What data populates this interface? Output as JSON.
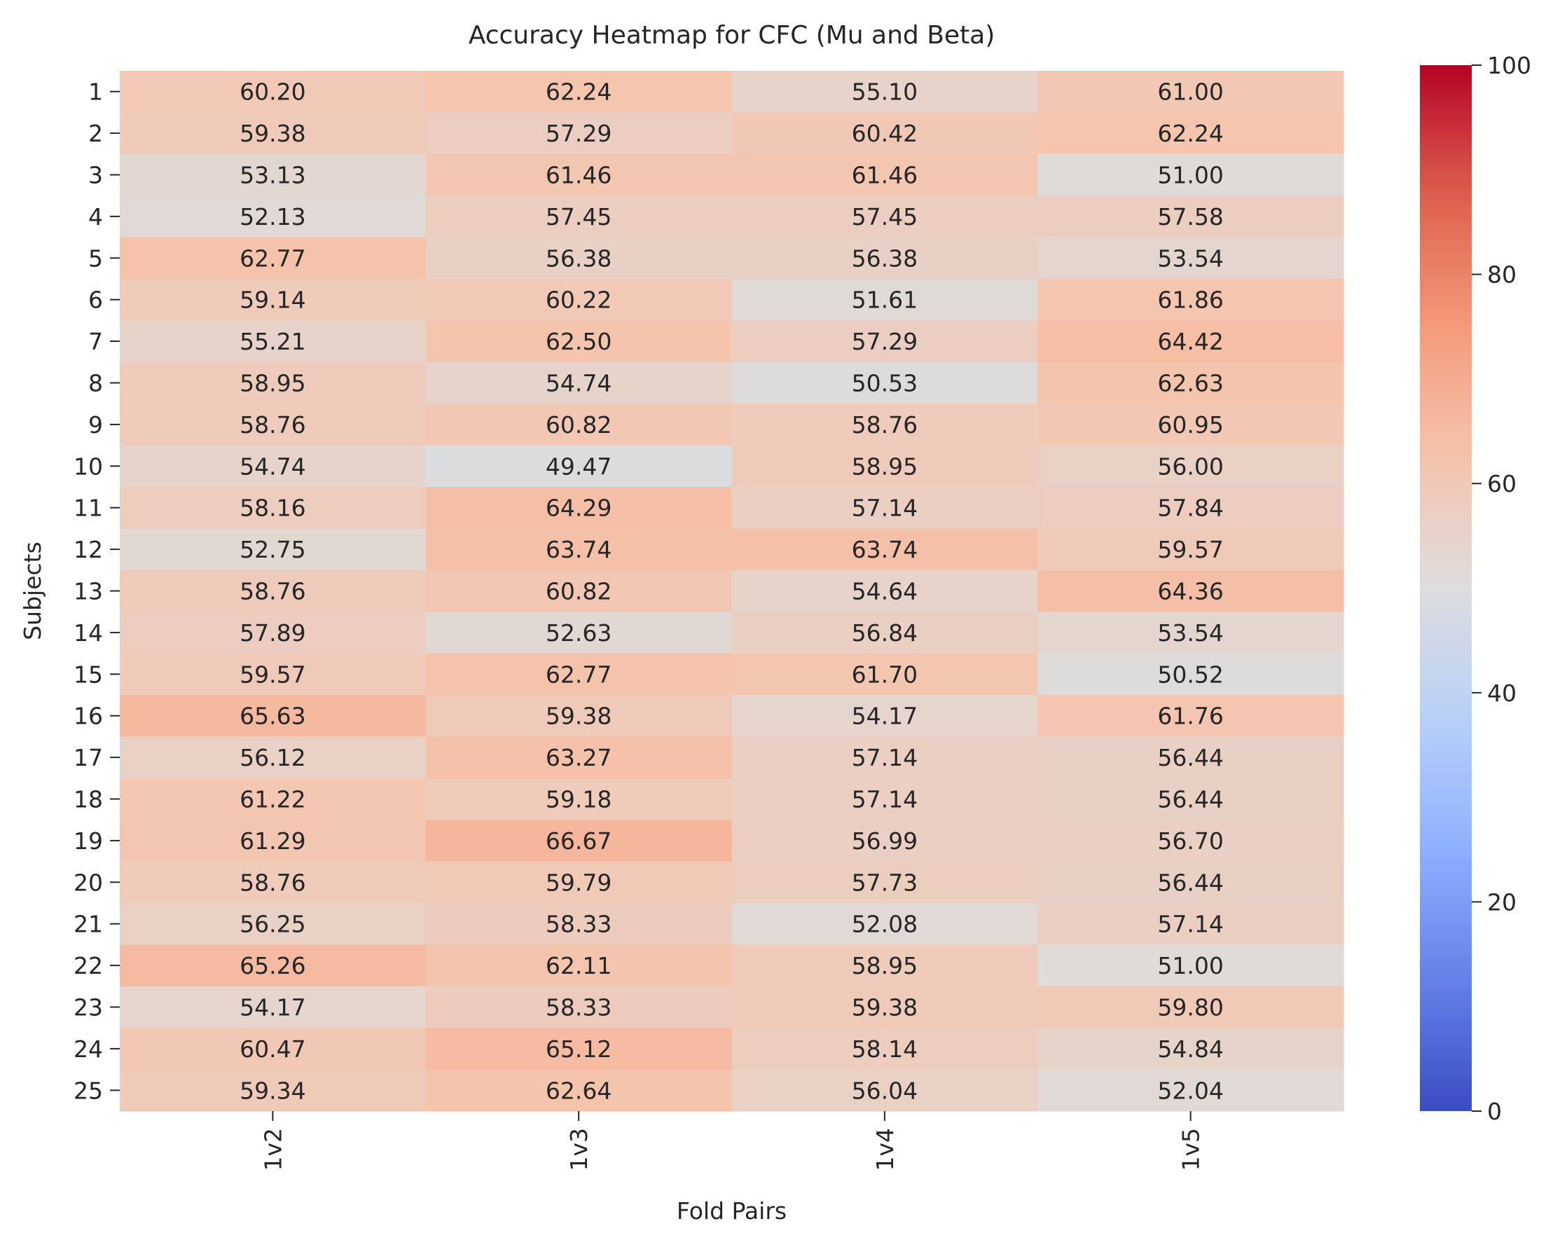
{
  "chart_data": {
    "type": "heatmap",
    "title": "Accuracy Heatmap for CFC (Mu and Beta)",
    "xlabel": "Fold Pairs",
    "ylabel": "Subjects",
    "x_categories": [
      "1v2",
      "1v3",
      "1v4",
      "1v5"
    ],
    "y_categories": [
      "1",
      "2",
      "3",
      "4",
      "5",
      "6",
      "7",
      "8",
      "9",
      "10",
      "11",
      "12",
      "13",
      "14",
      "15",
      "16",
      "17",
      "18",
      "19",
      "20",
      "21",
      "22",
      "23",
      "24",
      "25"
    ],
    "values": [
      [
        60.2,
        62.24,
        55.1,
        61.0
      ],
      [
        59.38,
        57.29,
        60.42,
        62.24
      ],
      [
        53.13,
        61.46,
        61.46,
        51.0
      ],
      [
        52.13,
        57.45,
        57.45,
        57.58
      ],
      [
        62.77,
        56.38,
        56.38,
        53.54
      ],
      [
        59.14,
        60.22,
        51.61,
        61.86
      ],
      [
        55.21,
        62.5,
        57.29,
        64.42
      ],
      [
        58.95,
        54.74,
        50.53,
        62.63
      ],
      [
        58.76,
        60.82,
        58.76,
        60.95
      ],
      [
        54.74,
        49.47,
        58.95,
        56.0
      ],
      [
        58.16,
        64.29,
        57.14,
        57.84
      ],
      [
        52.75,
        63.74,
        63.74,
        59.57
      ],
      [
        58.76,
        60.82,
        54.64,
        64.36
      ],
      [
        57.89,
        52.63,
        56.84,
        53.54
      ],
      [
        59.57,
        62.77,
        61.7,
        50.52
      ],
      [
        65.63,
        59.38,
        54.17,
        61.76
      ],
      [
        56.12,
        63.27,
        57.14,
        56.44
      ],
      [
        61.22,
        59.18,
        57.14,
        56.44
      ],
      [
        61.29,
        66.67,
        56.99,
        56.7
      ],
      [
        58.76,
        59.79,
        57.73,
        56.44
      ],
      [
        56.25,
        58.33,
        52.08,
        57.14
      ],
      [
        65.26,
        62.11,
        58.95,
        51.0
      ],
      [
        54.17,
        58.33,
        59.38,
        59.8
      ],
      [
        60.47,
        65.12,
        58.14,
        54.84
      ],
      [
        59.34,
        62.64,
        56.04,
        52.04
      ]
    ],
    "value_format": "2 decimals",
    "colormap": "coolwarm",
    "colorbar": {
      "range": [
        0,
        100
      ],
      "ticks": [
        "0",
        "20",
        "40",
        "60",
        "80",
        "100"
      ]
    },
    "grid": false
  }
}
